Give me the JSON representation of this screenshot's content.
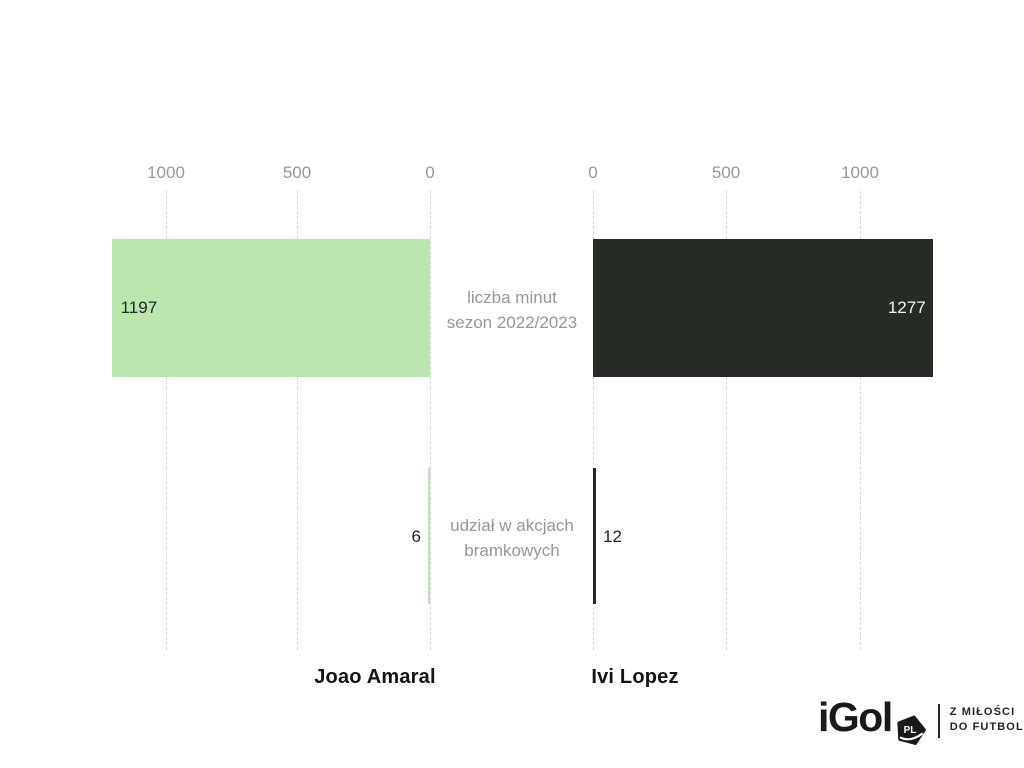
{
  "chart_data": {
    "type": "bar",
    "variant": "mirrored-horizontal-comparison",
    "title": "",
    "grid": "dashed-vertical",
    "legend_position": "none",
    "axis": {
      "left_ticks": [
        "1000",
        "500",
        "0"
      ],
      "right_ticks": [
        "0",
        "500",
        "1000"
      ],
      "tick_step": 500,
      "xlim": [
        0,
        1300
      ]
    },
    "metrics": [
      {
        "id": "minutes",
        "label_line1": "liczba minut",
        "label_line2": "sezon 2022/2023"
      },
      {
        "id": "goal_actions",
        "label_line1": "udział w akcjach",
        "label_line2": "bramkowych"
      }
    ],
    "players": [
      {
        "name": "Joao Amaral",
        "side": "left",
        "color": "#b9e7ae",
        "values": {
          "minutes": 1197,
          "goal_actions": 6
        }
      },
      {
        "name": "Ivi Lopez",
        "side": "right",
        "color": "#262b24",
        "values": {
          "minutes": 1277,
          "goal_actions": 12
        }
      }
    ]
  },
  "colors": {
    "background": "#ffffff",
    "bar_green": "#b9e7ae",
    "bar_dark": "#262b24",
    "axis_text": "#979797",
    "gridline": "#d8d8d8",
    "value_on_green": "#232823",
    "value_on_dark": "#f5f5f5",
    "player_name": "#141414"
  },
  "branding": {
    "logo_text": "iGol",
    "logo_badge": "PL",
    "tagline_line1": "Z MIŁOŚCI",
    "tagline_line2": "DO FUTBOLU"
  }
}
